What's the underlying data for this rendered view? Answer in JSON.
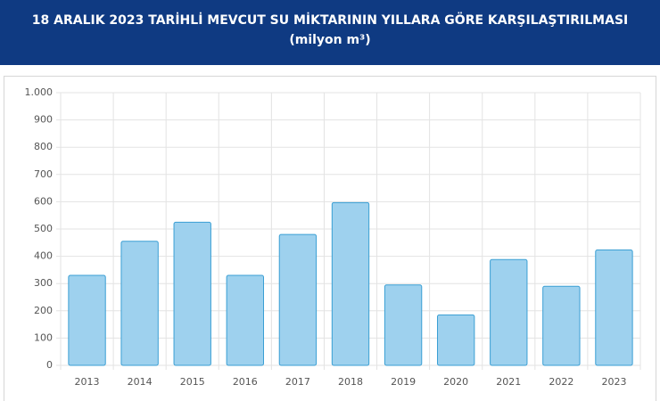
{
  "chart_data": {
    "type": "bar",
    "title": "18 ARALIK 2023 TARİHLİ MEVCUT SU MİKTARININ YILLARA GÖRE KARŞILAŞTIRILMASI (milyon m³)",
    "categories": [
      "2013",
      "2014",
      "2015",
      "2016",
      "2017",
      "2018",
      "2019",
      "2020",
      "2021",
      "2022",
      "2023"
    ],
    "values": [
      330,
      455,
      525,
      330,
      480,
      597,
      295,
      185,
      388,
      290,
      423
    ],
    "color": "#9ed1ee",
    "border_color": "#3a9fd4",
    "ylim": [
      0,
      1000
    ],
    "yticks": [
      0,
      100,
      200,
      300,
      400,
      500,
      600,
      700,
      800,
      900,
      {
        "value": 1000,
        "label": "1.000"
      }
    ],
    "grid": true
  }
}
